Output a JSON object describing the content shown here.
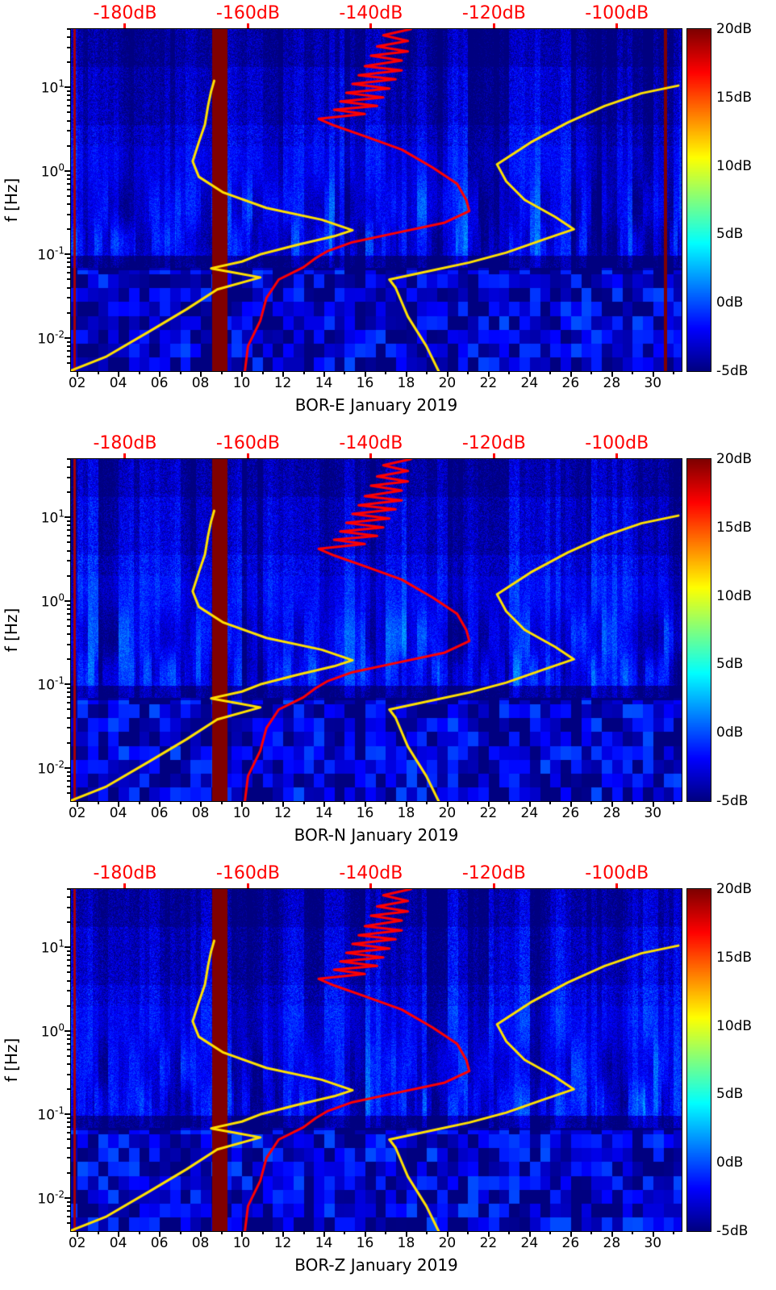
{
  "chart_data": {
    "type": "heatmap",
    "subtype": "spectrogram-grid",
    "description": "Three stacked seismic power spectrogram panels (E, N, Z components of station BOR) for January 2019, jet colormap, with red/yellow noise-model overlay curves read against the red top dB axis.",
    "panels": [
      {
        "title": "BOR-E January 2019",
        "has_saturated_line_at_day": 30.6
      },
      {
        "title": "BOR-N January 2019"
      },
      {
        "title": "BOR-Z January 2019"
      }
    ],
    "x_axis": {
      "unit": "day of January 2019",
      "range_days": [
        1.7,
        31.4
      ],
      "tick_labels": [
        "02",
        "04",
        "06",
        "08",
        "10",
        "12",
        "14",
        "16",
        "18",
        "20",
        "22",
        "24",
        "26",
        "28",
        "30"
      ],
      "tick_days": [
        2,
        4,
        6,
        8,
        10,
        12,
        14,
        16,
        18,
        20,
        22,
        24,
        26,
        28,
        30
      ]
    },
    "y_axis": {
      "label": "f [Hz]",
      "scale": "log10",
      "range_hz": [
        0.004,
        50
      ],
      "tick_values_hz": [
        10,
        1,
        0.1,
        0.01
      ],
      "tick_labels": [
        {
          "base": "10",
          "exp": "1"
        },
        {
          "base": "10",
          "exp": "0"
        },
        {
          "base": "10",
          "exp": "-1"
        },
        {
          "base": "10",
          "exp": "-2"
        }
      ]
    },
    "color_axis": {
      "colormap": "jet",
      "range_db": [
        -5,
        20
      ],
      "tick_labels": [
        "20dB",
        "15dB",
        "10dB",
        "5dB",
        "0dB",
        "-5dB"
      ],
      "tick_values_db": [
        20,
        15,
        10,
        5,
        0,
        -5
      ]
    },
    "top_axis": {
      "color": "#ff0000",
      "unit": "dB",
      "tick_labels": [
        "-180dB",
        "-160dB",
        "-140dB",
        "-120dB",
        "-100dB"
      ],
      "tick_values_db": [
        -180,
        -160,
        -140,
        -120,
        -100
      ],
      "edge_values_db": [
        -188.8,
        -89.5
      ]
    },
    "features": {
      "saturated_band_days": [
        8.55,
        9.3
      ],
      "left_edge_line_day": 1.85,
      "microseism_band_hz": [
        0.08,
        0.3
      ]
    },
    "overlay_curves": [
      {
        "name": "low-noise-model",
        "color": "#ffe100",
        "width": 3,
        "points_db_hz": [
          [
            -189,
            0.004
          ],
          [
            -183,
            0.006
          ],
          [
            -176,
            0.012
          ],
          [
            -170,
            0.022
          ],
          [
            -165,
            0.038
          ],
          [
            -158,
            0.053
          ],
          [
            -162,
            0.06
          ],
          [
            -166,
            0.068
          ],
          [
            -161,
            0.082
          ],
          [
            -158,
            0.1
          ],
          [
            -152,
            0.13
          ],
          [
            -146,
            0.165
          ],
          [
            -143,
            0.195
          ],
          [
            -148,
            0.26
          ],
          [
            -157,
            0.36
          ],
          [
            -164,
            0.55
          ],
          [
            -168,
            0.85
          ],
          [
            -169,
            1.3
          ],
          [
            -168,
            2.2
          ],
          [
            -167,
            3.6
          ],
          [
            -166.5,
            6
          ],
          [
            -166,
            9
          ],
          [
            -165.5,
            12
          ]
        ]
      },
      {
        "name": "high-noise-model",
        "color": "#ffe100",
        "width": 3,
        "points_db_hz": [
          [
            -129,
            0.004
          ],
          [
            -131,
            0.008
          ],
          [
            -134,
            0.018
          ],
          [
            -136,
            0.04
          ],
          [
            -137,
            0.05
          ],
          [
            -131,
            0.062
          ],
          [
            -124,
            0.08
          ],
          [
            -118,
            0.105
          ],
          [
            -112,
            0.15
          ],
          [
            -107,
            0.2
          ],
          [
            -110,
            0.28
          ],
          [
            -115,
            0.45
          ],
          [
            -118,
            0.75
          ],
          [
            -119.5,
            1.2
          ],
          [
            -114,
            2.2
          ],
          [
            -108,
            3.8
          ],
          [
            -102,
            6
          ],
          [
            -96,
            8.5
          ],
          [
            -90,
            10.5
          ]
        ]
      },
      {
        "name": "median-spectrum",
        "color": "#ff0000",
        "width": 3,
        "points_db_hz": [
          [
            -160.5,
            0.004
          ],
          [
            -160,
            0.008
          ],
          [
            -158,
            0.016
          ],
          [
            -157,
            0.03
          ],
          [
            -155,
            0.05
          ],
          [
            -151,
            0.07
          ],
          [
            -149,
            0.09
          ],
          [
            -147,
            0.11
          ],
          [
            -143,
            0.14
          ],
          [
            -136,
            0.18
          ],
          [
            -128,
            0.24
          ],
          [
            -124,
            0.33
          ],
          [
            -124.5,
            0.45
          ],
          [
            -126,
            0.7
          ],
          [
            -130,
            1.1
          ],
          [
            -135,
            1.8
          ],
          [
            -141,
            2.6
          ],
          [
            -146,
            3.5
          ],
          [
            -148.5,
            4.2
          ],
          [
            -141,
            4.8
          ],
          [
            -146,
            5.4
          ],
          [
            -139,
            6
          ],
          [
            -145,
            6.8
          ],
          [
            -138,
            7.6
          ],
          [
            -144,
            8.6
          ],
          [
            -137,
            9.7
          ],
          [
            -143,
            11
          ],
          [
            -136,
            12.5
          ],
          [
            -142,
            14
          ],
          [
            -135,
            16
          ],
          [
            -141,
            18
          ],
          [
            -135,
            21
          ],
          [
            -140,
            24
          ],
          [
            -134,
            27
          ],
          [
            -139,
            31
          ],
          [
            -134,
            36
          ],
          [
            -138,
            42
          ],
          [
            -133.5,
            50
          ]
        ]
      }
    ]
  }
}
